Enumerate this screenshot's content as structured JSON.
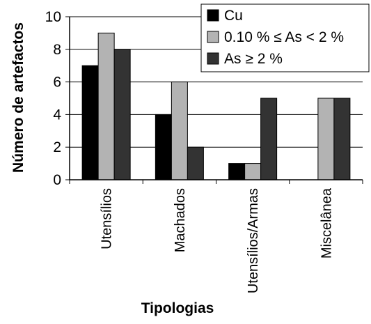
{
  "chart_data": {
    "type": "bar",
    "title": "",
    "xlabel": "Tipologias",
    "ylabel": "Número de artefactos",
    "ylim": [
      0,
      10
    ],
    "yticks": [
      0,
      2,
      4,
      6,
      8,
      10
    ],
    "ytick_labels": [
      "0",
      "2",
      "4",
      "6",
      "8",
      "10"
    ],
    "grid": true,
    "legend_position": "top-right",
    "categories": [
      "Utensílios",
      "Machados",
      "Utensílios/Armas",
      "Miscelânea"
    ],
    "series": [
      {
        "name": "Cu",
        "color": "#000000",
        "values": [
          7,
          4,
          1,
          0
        ]
      },
      {
        "name": "0.10 % ≤ As < 2 %",
        "color": "#b3b3b3",
        "values": [
          9,
          6,
          1,
          5
        ]
      },
      {
        "name": "As ≥ 2 %",
        "color": "#333333",
        "values": [
          8,
          2,
          5,
          5
        ]
      }
    ]
  }
}
